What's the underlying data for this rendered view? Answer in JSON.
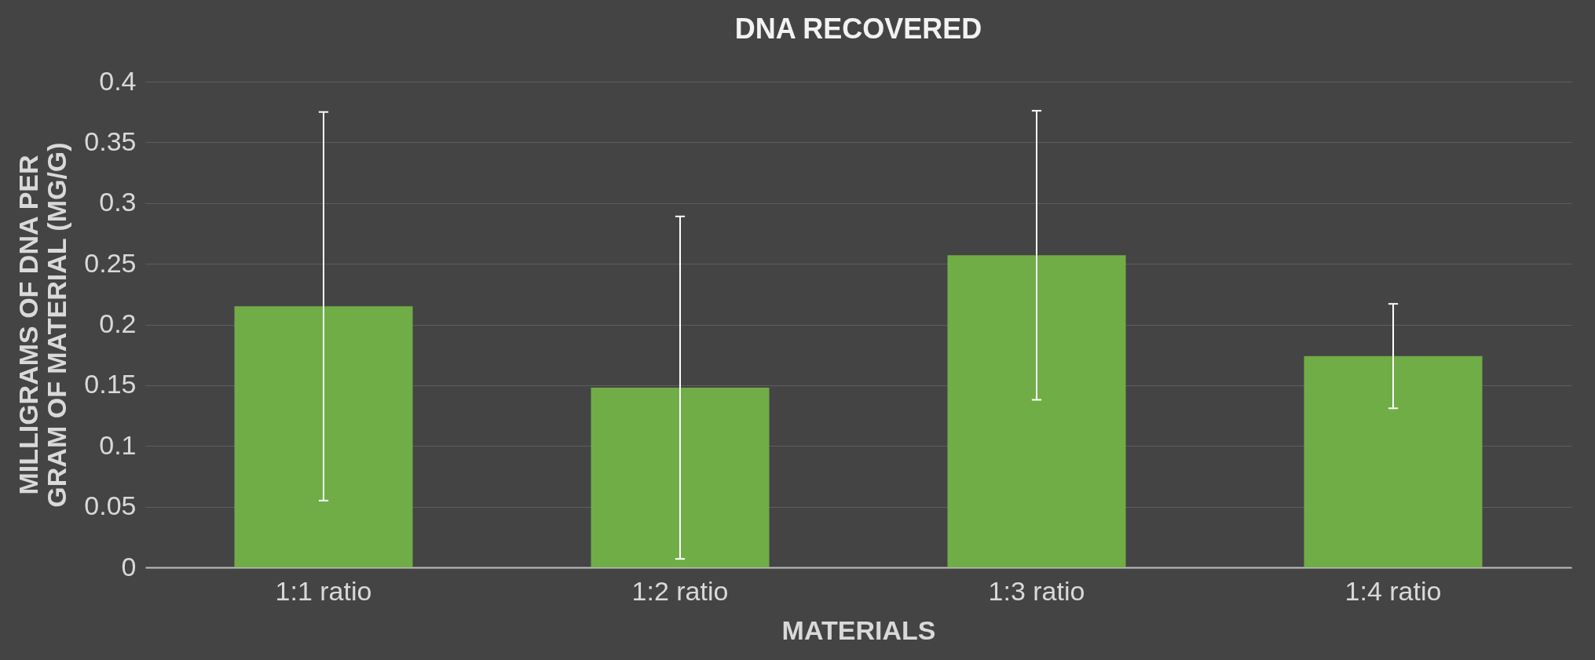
{
  "chart_data": {
    "type": "bar",
    "title": "DNA RECOVERED",
    "xlabel": "MATERIALS",
    "ylabel": "MILLIGRAMS OF DNA PER GRAM OF MATERIAL (MG/G)",
    "categories": [
      "1:1 ratio",
      "1:2 ratio",
      "1:3 ratio",
      "1:4 ratio"
    ],
    "values": [
      0.215,
      0.148,
      0.257,
      0.174
    ],
    "errors": [
      0.16,
      0.141,
      0.119,
      0.043
    ],
    "color": "#70ad47",
    "ylim": [
      0,
      0.4
    ],
    "yticks": [
      0,
      0.05,
      0.1,
      0.15,
      0.2,
      0.25,
      0.3,
      0.35,
      0.4
    ],
    "grid": "y"
  }
}
